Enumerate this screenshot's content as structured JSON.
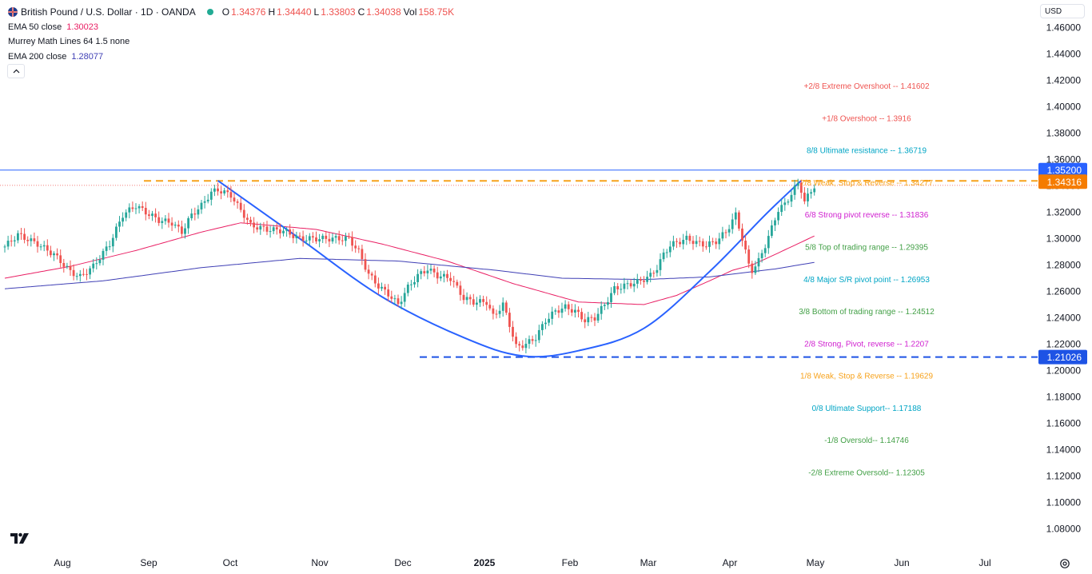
{
  "header": {
    "title": "British Pound / U.S. Dollar · 1D · OANDA",
    "ohlc": [
      {
        "label": "O",
        "value": "1.34376"
      },
      {
        "label": "H",
        "value": "1.34440"
      },
      {
        "label": "L",
        "value": "1.33803"
      },
      {
        "label": "C",
        "value": "1.34038"
      },
      {
        "label": "Vol",
        "value": "158.75K"
      }
    ],
    "indicators": [
      {
        "label": "EMA 50 close",
        "value": "1.30023",
        "color": "#e91e63"
      },
      {
        "label": "Murrey Math Lines 64 1.5 none",
        "value": "",
        "color": "#131722"
      },
      {
        "label": "EMA 200 close",
        "value": "1.28077",
        "color": "#3f3fb5"
      }
    ],
    "currency": "USD"
  },
  "colors": {
    "up": "#26a69a",
    "down": "#ef5350",
    "ema50": "#e91e63",
    "ema200": "#3f3fb5",
    "cup": "#2962ff",
    "resistance": "#f7a21b",
    "support": "#1e53e5",
    "topline": "#2962ff"
  },
  "chart_data": {
    "type": "candlestick",
    "y_axis": {
      "min": 1.07,
      "max": 1.47,
      "ticks": [
        "1.46000",
        "1.44000",
        "1.42000",
        "1.40000",
        "1.38000",
        "1.36000",
        "1.34000",
        "1.32000",
        "1.30000",
        "1.28000",
        "1.26000",
        "1.24000",
        "1.22000",
        "1.20000",
        "1.18000",
        "1.16000",
        "1.14000",
        "1.12000",
        "1.10000",
        "1.08000"
      ]
    },
    "x_axis": {
      "labels": [
        "Aug",
        "Sep",
        "Oct",
        "Nov",
        "Dec",
        "2025",
        "Feb",
        "Mar",
        "Apr",
        "May",
        "Jun",
        "Jul"
      ]
    },
    "price_labels": [
      {
        "value": 1.352,
        "text": "1.35200",
        "color": "#2962ff"
      },
      {
        "value": 1.34316,
        "text": "1.34316",
        "color": "#f57c00"
      },
      {
        "value": 1.21026,
        "text": "1.21026",
        "color": "#1e53e5"
      }
    ],
    "murrey_lines": [
      {
        "text": "+2/8 Extreme Overshoot --  1.41602",
        "value": 1.41602,
        "color": "#ef5350"
      },
      {
        "text": "+1/8 Overshoot --  1.3916",
        "value": 1.3916,
        "color": "#ef5350"
      },
      {
        "text": "8/8 Ultimate resistance --  1.36719",
        "value": 1.36719,
        "color": "#00a5c5"
      },
      {
        "text": "7/8 Weak, Stop & Reverse --  1.34277",
        "value": 1.34277,
        "color": "#f7a21b"
      },
      {
        "text": "6/8 Strong pivot reverse --  1.31836",
        "value": 1.31836,
        "color": "#d020d0"
      },
      {
        "text": "5/8 Top of trading range --  1.29395",
        "value": 1.29395,
        "color": "#43a047"
      },
      {
        "text": "4/8 Major S/R pivot point --  1.26953",
        "value": 1.26953,
        "color": "#00a5c5"
      },
      {
        "text": "3/8 Bottom of trading range --  1.24512",
        "value": 1.24512,
        "color": "#43a047"
      },
      {
        "text": "2/8 Strong, Pivot, reverse --  1.2207",
        "value": 1.2207,
        "color": "#d020d0"
      },
      {
        "text": "1/8 Weak, Stop & Reverse --  1.19629",
        "value": 1.19629,
        "color": "#f7a21b"
      },
      {
        "text": "0/8 Ultimate Support--  1.17188",
        "value": 1.17188,
        "color": "#00a5c5"
      },
      {
        "text": "-1/8 Oversold--  1.14746",
        "value": 1.14746,
        "color": "#43a047"
      },
      {
        "text": "-2/8 Extreme Oversold--  1.12305",
        "value": 1.12305,
        "color": "#43a047"
      }
    ],
    "series": [
      {
        "name": "EMA 50 close",
        "anchors": [
          [
            0,
            1.27
          ],
          [
            20,
            1.279
          ],
          [
            40,
            1.291
          ],
          [
            60,
            1.305
          ],
          [
            72,
            1.312
          ],
          [
            95,
            1.307
          ],
          [
            115,
            1.296
          ],
          [
            135,
            1.283
          ],
          [
            155,
            1.266
          ],
          [
            175,
            1.252
          ],
          [
            195,
            1.25
          ],
          [
            205,
            1.257
          ],
          [
            215,
            1.268
          ],
          [
            222,
            1.276
          ],
          [
            228,
            1.28
          ],
          [
            235,
            1.288
          ],
          [
            247,
            1.302
          ]
        ]
      },
      {
        "name": "EMA 200 close",
        "anchors": [
          [
            0,
            1.262
          ],
          [
            30,
            1.268
          ],
          [
            60,
            1.278
          ],
          [
            90,
            1.285
          ],
          [
            120,
            1.283
          ],
          [
            150,
            1.276
          ],
          [
            170,
            1.27
          ],
          [
            195,
            1.269
          ],
          [
            215,
            1.271
          ],
          [
            235,
            1.277
          ],
          [
            247,
            1.282
          ]
        ]
      }
    ],
    "cup_curve": {
      "points": [
        [
          65,
          1.344
        ],
        [
          90,
          1.3
        ],
        [
          115,
          1.256
        ],
        [
          140,
          1.225
        ],
        [
          158,
          1.211
        ],
        [
          175,
          1.215
        ],
        [
          195,
          1.232
        ],
        [
          215,
          1.275
        ],
        [
          232,
          1.318
        ],
        [
          243,
          1.344
        ]
      ]
    },
    "price_anchors": [
      [
        0,
        1.294
      ],
      [
        4,
        1.303
      ],
      [
        10,
        1.296
      ],
      [
        15,
        1.288
      ],
      [
        20,
        1.275
      ],
      [
        23,
        1.271
      ],
      [
        27,
        1.279
      ],
      [
        32,
        1.296
      ],
      [
        36,
        1.318
      ],
      [
        40,
        1.325
      ],
      [
        43,
        1.32
      ],
      [
        47,
        1.314
      ],
      [
        51,
        1.312
      ],
      [
        54,
        1.305
      ],
      [
        57,
        1.318
      ],
      [
        60,
        1.325
      ],
      [
        63,
        1.335
      ],
      [
        65,
        1.337
      ],
      [
        67,
        1.335
      ],
      [
        69,
        1.333
      ],
      [
        71,
        1.325
      ],
      [
        73,
        1.318
      ],
      [
        75,
        1.31
      ],
      [
        80,
        1.307
      ],
      [
        85,
        1.306
      ],
      [
        90,
        1.3
      ],
      [
        95,
        1.3
      ],
      [
        100,
        1.3
      ],
      [
        105,
        1.3
      ],
      [
        108,
        1.29
      ],
      [
        111,
        1.273
      ],
      [
        114,
        1.264
      ],
      [
        117,
        1.258
      ],
      [
        120,
        1.25
      ],
      [
        123,
        1.263
      ],
      [
        126,
        1.272
      ],
      [
        129,
        1.277
      ],
      [
        132,
        1.272
      ],
      [
        136,
        1.27
      ],
      [
        140,
        1.255
      ],
      [
        143,
        1.252
      ],
      [
        147,
        1.252
      ],
      [
        149,
        1.241
      ],
      [
        152,
        1.25
      ],
      [
        154,
        1.235
      ],
      [
        156,
        1.218
      ],
      [
        159,
        1.22
      ],
      [
        162,
        1.225
      ],
      [
        165,
        1.238
      ],
      [
        168,
        1.245
      ],
      [
        171,
        1.248
      ],
      [
        174,
        1.245
      ],
      [
        177,
        1.238
      ],
      [
        180,
        1.24
      ],
      [
        183,
        1.25
      ],
      [
        186,
        1.262
      ],
      [
        190,
        1.265
      ],
      [
        194,
        1.268
      ],
      [
        197,
        1.272
      ],
      [
        199,
        1.278
      ],
      [
        201,
        1.288
      ],
      [
        203,
        1.295
      ],
      [
        205,
        1.297
      ],
      [
        208,
        1.3
      ],
      [
        211,
        1.297
      ],
      [
        214,
        1.295
      ],
      [
        217,
        1.298
      ],
      [
        220,
        1.305
      ],
      [
        223,
        1.318
      ],
      [
        225,
        1.3
      ],
      [
        227,
        1.28
      ],
      [
        228,
        1.276
      ],
      [
        230,
        1.283
      ],
      [
        232,
        1.295
      ],
      [
        234,
        1.308
      ],
      [
        236,
        1.322
      ],
      [
        238,
        1.326
      ],
      [
        240,
        1.334
      ],
      [
        242,
        1.342
      ],
      [
        243,
        1.337
      ],
      [
        244,
        1.328
      ],
      [
        245,
        1.332
      ],
      [
        246,
        1.336
      ],
      [
        247,
        1.34
      ]
    ]
  }
}
